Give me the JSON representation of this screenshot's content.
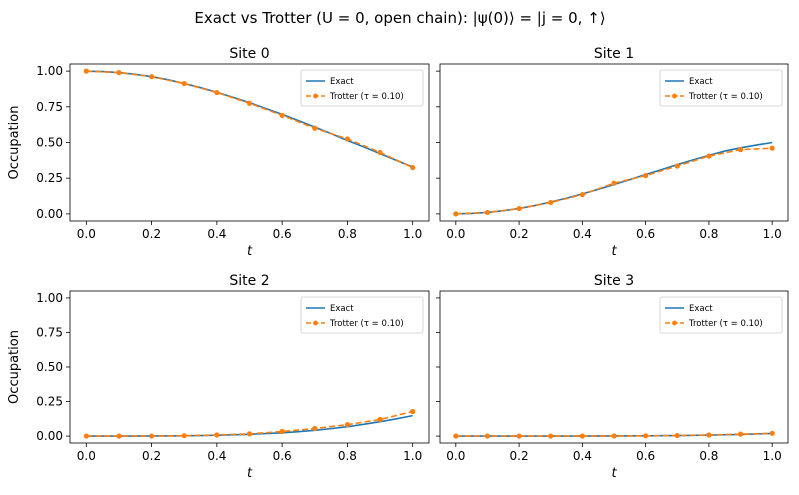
{
  "figure": {
    "title": "Exact vs Trotter (U = 0, open chain): |ψ(0)⟩ = |j = 0, ↑⟩"
  },
  "colors": {
    "exact": "#1f77b4",
    "trotter": "#ff7f0e",
    "axes": "#000000",
    "background": "#ffffff"
  },
  "chart_data": [
    {
      "type": "line",
      "title": "Site 0",
      "xlabel": "t",
      "ylabel": "Occupation",
      "xlim": [
        -0.05,
        1.05
      ],
      "ylim": [
        -0.05,
        1.05
      ],
      "xticks": [
        "0.0",
        "0.2",
        "0.4",
        "0.6",
        "0.8",
        "1.0"
      ],
      "yticks": [
        "0.00",
        "0.25",
        "0.50",
        "0.75",
        "1.00"
      ],
      "legend_position": "top-right",
      "grid": false,
      "series": [
        {
          "name": "Exact",
          "style": "solid",
          "x": [
            0.0,
            0.05,
            0.1,
            0.15,
            0.2,
            0.25,
            0.3,
            0.35,
            0.4,
            0.45,
            0.5,
            0.55,
            0.6,
            0.65,
            0.7,
            0.75,
            0.8,
            0.85,
            0.9,
            0.95,
            1.0
          ],
          "y": [
            1.0,
            0.997,
            0.99,
            0.978,
            0.961,
            0.94,
            0.913,
            0.884,
            0.852,
            0.816,
            0.779,
            0.738,
            0.697,
            0.653,
            0.608,
            0.562,
            0.514,
            0.469,
            0.422,
            0.375,
            0.328
          ]
        },
        {
          "name": "Trotter (τ = 0.10)",
          "style": "dashed-markers",
          "x": [
            0.0,
            0.1,
            0.2,
            0.3,
            0.4,
            0.5,
            0.6,
            0.7,
            0.8,
            0.9,
            1.0
          ],
          "y": [
            1.0,
            0.99,
            0.961,
            0.913,
            0.85,
            0.775,
            0.69,
            0.6,
            0.525,
            0.43,
            0.325
          ]
        }
      ]
    },
    {
      "type": "line",
      "title": "Site 1",
      "xlabel": "t",
      "ylabel": "",
      "xlim": [
        -0.05,
        1.05
      ],
      "ylim": [
        -0.05,
        1.05
      ],
      "xticks": [
        "0.0",
        "0.2",
        "0.4",
        "0.6",
        "0.8",
        "1.0"
      ],
      "yticks": [],
      "legend_position": "top-right",
      "grid": false,
      "series": [
        {
          "name": "Exact",
          "style": "solid",
          "x": [
            0.0,
            0.05,
            0.1,
            0.15,
            0.2,
            0.25,
            0.3,
            0.35,
            0.4,
            0.45,
            0.5,
            0.55,
            0.6,
            0.65,
            0.7,
            0.75,
            0.8,
            0.85,
            0.9,
            0.95,
            1.0
          ],
          "y": [
            0.0,
            0.003,
            0.01,
            0.022,
            0.038,
            0.058,
            0.083,
            0.11,
            0.14,
            0.172,
            0.206,
            0.24,
            0.276,
            0.31,
            0.345,
            0.378,
            0.41,
            0.44,
            0.463,
            0.482,
            0.5
          ]
        },
        {
          "name": "Trotter (τ = 0.10)",
          "style": "dashed-markers",
          "x": [
            0.0,
            0.1,
            0.2,
            0.3,
            0.4,
            0.5,
            0.6,
            0.7,
            0.8,
            0.9,
            1.0
          ],
          "y": [
            0.0,
            0.01,
            0.037,
            0.08,
            0.135,
            0.215,
            0.268,
            0.335,
            0.405,
            0.45,
            0.46
          ]
        }
      ]
    },
    {
      "type": "line",
      "title": "Site 2",
      "xlabel": "t",
      "ylabel": "Occupation",
      "xlim": [
        -0.05,
        1.05
      ],
      "ylim": [
        -0.05,
        1.05
      ],
      "xticks": [
        "0.0",
        "0.2",
        "0.4",
        "0.6",
        "0.8",
        "1.0"
      ],
      "yticks": [
        "0.00",
        "0.25",
        "0.50",
        "0.75",
        "1.00"
      ],
      "legend_position": "top-right",
      "grid": false,
      "series": [
        {
          "name": "Exact",
          "style": "solid",
          "x": [
            0.0,
            0.05,
            0.1,
            0.15,
            0.2,
            0.25,
            0.3,
            0.35,
            0.4,
            0.45,
            0.5,
            0.55,
            0.6,
            0.65,
            0.7,
            0.75,
            0.8,
            0.85,
            0.9,
            0.95,
            1.0
          ],
          "y": [
            0.0,
            0.0,
            0.0,
            0.0,
            0.001,
            0.001,
            0.002,
            0.004,
            0.006,
            0.009,
            0.013,
            0.018,
            0.024,
            0.032,
            0.042,
            0.054,
            0.068,
            0.085,
            0.104,
            0.125,
            0.148
          ]
        },
        {
          "name": "Trotter (τ = 0.10)",
          "style": "dashed-markers",
          "x": [
            0.0,
            0.1,
            0.2,
            0.3,
            0.4,
            0.5,
            0.6,
            0.7,
            0.8,
            0.9,
            1.0
          ],
          "y": [
            0.0,
            0.0,
            0.0,
            0.003,
            0.008,
            0.016,
            0.033,
            0.055,
            0.083,
            0.12,
            0.178
          ]
        }
      ]
    },
    {
      "type": "line",
      "title": "Site 3",
      "xlabel": "t",
      "ylabel": "",
      "xlim": [
        -0.05,
        1.05
      ],
      "ylim": [
        -0.05,
        1.05
      ],
      "xticks": [
        "0.0",
        "0.2",
        "0.4",
        "0.6",
        "0.8",
        "1.0"
      ],
      "yticks": [],
      "legend_position": "top-right",
      "grid": false,
      "series": [
        {
          "name": "Exact",
          "style": "solid",
          "x": [
            0.0,
            0.1,
            0.2,
            0.3,
            0.4,
            0.5,
            0.6,
            0.7,
            0.8,
            0.9,
            1.0
          ],
          "y": [
            0.0,
            0.0,
            0.0,
            0.0,
            0.0,
            0.001,
            0.002,
            0.004,
            0.007,
            0.012,
            0.019
          ]
        },
        {
          "name": "Trotter (τ = 0.10)",
          "style": "dashed-markers",
          "x": [
            0.0,
            0.1,
            0.2,
            0.3,
            0.4,
            0.5,
            0.6,
            0.7,
            0.8,
            0.9,
            1.0
          ],
          "y": [
            0.0,
            0.0,
            0.0,
            0.0,
            0.0,
            0.001,
            0.002,
            0.004,
            0.008,
            0.014,
            0.02
          ]
        }
      ]
    }
  ]
}
